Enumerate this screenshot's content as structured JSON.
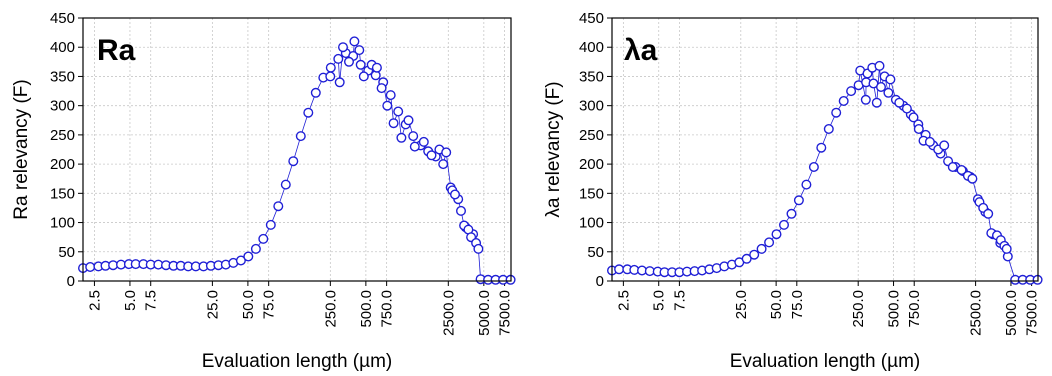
{
  "chart_data": [
    {
      "type": "scatter",
      "label": "Ra",
      "xlabel": "Evaluation length (µm)",
      "ylabel": "Ra relevancy (F)",
      "xscale": "log",
      "xlim": [
        2,
        8500
      ],
      "ylim": [
        0,
        450
      ],
      "xticks": [
        2.5,
        5.0,
        7.5,
        25.0,
        50.0,
        75.0,
        250.0,
        500.0,
        750.0,
        2500.0,
        5000.0,
        7500.0
      ],
      "xtick_labels": [
        "2.5",
        "5.0",
        "7.5",
        "25.0",
        "50.0",
        "75.0",
        "250.0",
        "500.0",
        "750.0",
        "2500.0",
        "5000.0",
        "7500.0"
      ],
      "yticks": [
        0,
        50,
        100,
        150,
        200,
        250,
        300,
        350,
        400,
        450
      ],
      "ytick_labels": [
        "0",
        "50",
        "100",
        "150",
        "200",
        "250",
        "300",
        "350",
        "400",
        "450"
      ],
      "grid": true,
      "marker_color": "#1f1fd6",
      "points": [
        [
          2.0,
          22
        ],
        [
          2.3,
          24
        ],
        [
          2.7,
          25
        ],
        [
          3.1,
          26
        ],
        [
          3.6,
          27
        ],
        [
          4.2,
          28
        ],
        [
          4.9,
          29
        ],
        [
          5.6,
          29
        ],
        [
          6.5,
          29
        ],
        [
          7.5,
          28
        ],
        [
          8.7,
          28
        ],
        [
          10.1,
          27
        ],
        [
          11.7,
          26
        ],
        [
          13.5,
          26
        ],
        [
          15.6,
          25
        ],
        [
          18.1,
          25
        ],
        [
          21.0,
          25
        ],
        [
          24.3,
          26
        ],
        [
          28.1,
          27
        ],
        [
          32.5,
          28
        ],
        [
          37.6,
          31
        ],
        [
          43.6,
          35
        ],
        [
          50.4,
          42
        ],
        [
          58.4,
          55
        ],
        [
          67.6,
          72
        ],
        [
          78.2,
          96
        ],
        [
          90.5,
          128
        ],
        [
          104.8,
          165
        ],
        [
          121.3,
          205
        ],
        [
          140.4,
          248
        ],
        [
          162.5,
          288
        ],
        [
          188.1,
          322
        ],
        [
          217.7,
          348
        ],
        [
          252.0,
          365
        ],
        [
          291.7,
          380
        ],
        [
          337.7,
          390
        ],
        [
          390.9,
          385
        ],
        [
          452.4,
          370
        ],
        [
          523.7,
          360
        ],
        [
          606.2,
          352
        ],
        [
          701.7,
          340
        ],
        [
          812.2,
          318
        ],
        [
          940.1,
          290
        ],
        [
          1088.2,
          268
        ],
        [
          1259.6,
          248
        ],
        [
          1458.0,
          232
        ],
        [
          1687.6,
          222
        ],
        [
          1953.5,
          213
        ],
        [
          2261.2,
          200
        ],
        [
          2617.4,
          160
        ],
        [
          3029.7,
          140
        ],
        [
          3506.9,
          92
        ],
        [
          4059.3,
          80
        ],
        [
          4698.7,
          3
        ],
        [
          5438.9,
          2
        ],
        [
          6295.6,
          2
        ],
        [
          7287.3,
          2
        ],
        [
          8435.2,
          2
        ],
        [
          250.0,
          350
        ],
        [
          320.0,
          400
        ],
        [
          400.0,
          410
        ],
        [
          480.0,
          350
        ],
        [
          560.0,
          370
        ],
        [
          300.0,
          340
        ],
        [
          360.0,
          375
        ],
        [
          440.0,
          395
        ],
        [
          620.0,
          365
        ],
        [
          680.0,
          330
        ],
        [
          760.0,
          300
        ],
        [
          860.0,
          270
        ],
        [
          1000.0,
          245
        ],
        [
          1150.0,
          275
        ],
        [
          1300.0,
          230
        ],
        [
          1550.0,
          238
        ],
        [
          1800.0,
          215
        ],
        [
          2100.0,
          225
        ],
        [
          2400.0,
          220
        ],
        [
          2700.0,
          155
        ],
        [
          2850.0,
          148
        ],
        [
          3200.0,
          120
        ],
        [
          3400.0,
          95
        ],
        [
          3700.0,
          88
        ],
        [
          3900.0,
          75
        ],
        [
          4300.0,
          65
        ],
        [
          4500.0,
          55
        ]
      ]
    },
    {
      "type": "scatter",
      "label": "λa",
      "xlabel": "Evaluation length (µm)",
      "ylabel": "λa relevancy (F)",
      "xscale": "log",
      "xlim": [
        2,
        8500
      ],
      "ylim": [
        0,
        450
      ],
      "xticks": [
        2.5,
        5.0,
        7.5,
        25.0,
        50.0,
        75.0,
        250.0,
        500.0,
        750.0,
        2500.0,
        5000.0,
        7500.0
      ],
      "xtick_labels": [
        "2.5",
        "5.0",
        "7.5",
        "25.0",
        "50.0",
        "75.0",
        "250.0",
        "500.0",
        "750.0",
        "2500.0",
        "5000.0",
        "7500.0"
      ],
      "yticks": [
        0,
        50,
        100,
        150,
        200,
        250,
        300,
        350,
        400,
        450
      ],
      "ytick_labels": [
        "0",
        "50",
        "100",
        "150",
        "200",
        "250",
        "300",
        "350",
        "400",
        "450"
      ],
      "grid": true,
      "marker_color": "#1f1fd6",
      "points": [
        [
          2.0,
          18
        ],
        [
          2.3,
          20
        ],
        [
          2.7,
          20
        ],
        [
          3.1,
          19
        ],
        [
          3.6,
          18
        ],
        [
          4.2,
          17
        ],
        [
          4.9,
          16
        ],
        [
          5.6,
          15
        ],
        [
          6.5,
          15
        ],
        [
          7.5,
          15
        ],
        [
          8.7,
          16
        ],
        [
          10.1,
          17
        ],
        [
          11.7,
          18
        ],
        [
          13.5,
          20
        ],
        [
          15.6,
          22
        ],
        [
          18.1,
          25
        ],
        [
          21.0,
          28
        ],
        [
          24.3,
          32
        ],
        [
          28.1,
          38
        ],
        [
          32.5,
          45
        ],
        [
          37.6,
          55
        ],
        [
          43.6,
          66
        ],
        [
          50.4,
          80
        ],
        [
          58.4,
          96
        ],
        [
          67.6,
          115
        ],
        [
          78.2,
          138
        ],
        [
          90.5,
          165
        ],
        [
          104.8,
          195
        ],
        [
          121.3,
          228
        ],
        [
          140.4,
          260
        ],
        [
          162.5,
          288
        ],
        [
          188.1,
          308
        ],
        [
          217.7,
          325
        ],
        [
          252.0,
          335
        ],
        [
          291.7,
          340
        ],
        [
          337.7,
          338
        ],
        [
          390.9,
          332
        ],
        [
          452.4,
          322
        ],
        [
          523.7,
          310
        ],
        [
          606.2,
          300
        ],
        [
          701.7,
          285
        ],
        [
          812.2,
          268
        ],
        [
          940.1,
          250
        ],
        [
          1088.2,
          232
        ],
        [
          1259.6,
          218
        ],
        [
          1458.0,
          205
        ],
        [
          1687.6,
          195
        ],
        [
          1953.5,
          188
        ],
        [
          2261.2,
          178
        ],
        [
          2617.4,
          140
        ],
        [
          3029.7,
          118
        ],
        [
          3506.9,
          80
        ],
        [
          4059.3,
          65
        ],
        [
          4698.7,
          42
        ],
        [
          5438.9,
          2
        ],
        [
          6295.6,
          2
        ],
        [
          7287.3,
          2
        ],
        [
          8435.2,
          2
        ],
        [
          260.0,
          360
        ],
        [
          300.0,
          355
        ],
        [
          330.0,
          365
        ],
        [
          380.0,
          368
        ],
        [
          420.0,
          350
        ],
        [
          470.0,
          345
        ],
        [
          290.0,
          310
        ],
        [
          360.0,
          305
        ],
        [
          560.0,
          305
        ],
        [
          650.0,
          295
        ],
        [
          740.0,
          280
        ],
        [
          820.0,
          260
        ],
        [
          900.0,
          240
        ],
        [
          1020.0,
          238
        ],
        [
          1200.0,
          225
        ],
        [
          1350.0,
          232
        ],
        [
          1600.0,
          195
        ],
        [
          1900.0,
          190
        ],
        [
          2150.0,
          180
        ],
        [
          2350.0,
          175
        ],
        [
          2700.0,
          135
        ],
        [
          2900.0,
          125
        ],
        [
          3200.0,
          115
        ],
        [
          3400.0,
          82
        ],
        [
          3800.0,
          78
        ],
        [
          4100.0,
          70
        ],
        [
          4400.0,
          60
        ],
        [
          4600.0,
          55
        ]
      ]
    }
  ]
}
